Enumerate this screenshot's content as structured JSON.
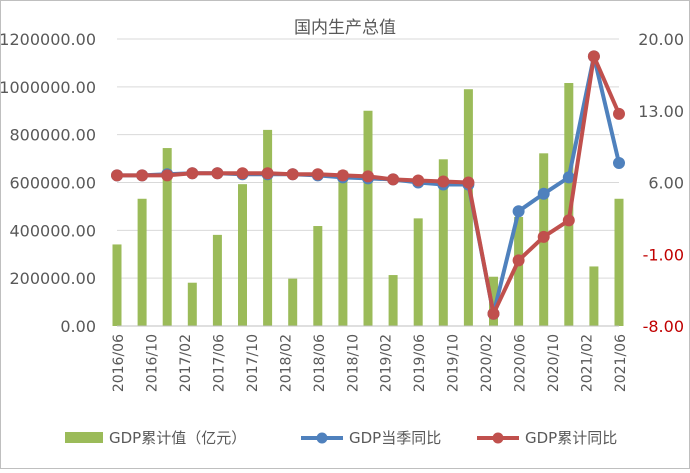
{
  "chart_data": {
    "type": "bar",
    "title": "国内生产总值",
    "categories": [
      "2016/06",
      "2016/10",
      "2017/02",
      "2017/06",
      "2017/10",
      "2018/02",
      "2018/06",
      "2018/10",
      "2019/02",
      "2019/06",
      "2019/10",
      "2020/02",
      "2020/06",
      "2020/10",
      "2021/02",
      "2021/06"
    ],
    "left_axis": {
      "min": 0,
      "max": 1200000,
      "step": 200000,
      "tick_labels": [
        "0.00",
        "200000.00",
        "400000.00",
        "600000.00",
        "800000.00",
        "1000000.00",
        "1200000.00"
      ]
    },
    "right_axis": {
      "min": -8,
      "max": 20,
      "step": 7,
      "tick_labels": [
        "-8.00",
        "-1.00",
        "6.00",
        "13.00",
        "20.00"
      ],
      "negative_color": "#c00000"
    },
    "grid": true,
    "legend_position": "bottom",
    "series": [
      {
        "name": "GDP累计值（亿元）",
        "type": "bar",
        "axis": "left",
        "color": "#9bbb59",
        "x": [
          "2016Q2",
          "2016Q3",
          "2016Q4",
          "2017Q1",
          "2017Q2",
          "2017Q3",
          "2017Q4",
          "2018Q1",
          "2018Q2",
          "2018Q3",
          "2018Q4",
          "2019Q1",
          "2019Q2",
          "2019Q3",
          "2019Q4",
          "2020Q1",
          "2020Q2",
          "2020Q3",
          "2020Q4",
          "2021Q1",
          "2021Q2"
        ],
        "values": [
          341000,
          532000,
          744000,
          181000,
          381000,
          593000,
          820000,
          198000,
          418000,
          650000,
          900000,
          213000,
          450000,
          697000,
          990000,
          206000,
          456000,
          722000,
          1016000,
          249000,
          532000
        ]
      },
      {
        "name": "GDP当季同比",
        "type": "line",
        "axis": "right",
        "color": "#4f81bd",
        "x": [
          "2016Q2",
          "2016Q3",
          "2016Q4",
          "2017Q1",
          "2017Q2",
          "2017Q3",
          "2017Q4",
          "2018Q1",
          "2018Q2",
          "2018Q3",
          "2018Q4",
          "2019Q1",
          "2019Q2",
          "2019Q3",
          "2019Q4",
          "2020Q1",
          "2020Q2",
          "2020Q3",
          "2020Q4",
          "2021Q1",
          "2021Q2"
        ],
        "values": [
          6.7,
          6.7,
          6.8,
          6.9,
          6.9,
          6.8,
          6.8,
          6.8,
          6.7,
          6.5,
          6.4,
          6.3,
          6.0,
          5.8,
          5.8,
          -6.8,
          3.2,
          4.9,
          6.5,
          18.3,
          7.9
        ]
      },
      {
        "name": "GDP累计同比",
        "type": "line",
        "axis": "right",
        "color": "#c0504d",
        "x": [
          "2016Q2",
          "2016Q3",
          "2016Q4",
          "2017Q1",
          "2017Q2",
          "2017Q3",
          "2017Q4",
          "2018Q1",
          "2018Q2",
          "2018Q3",
          "2018Q4",
          "2019Q1",
          "2019Q2",
          "2019Q3",
          "2019Q4",
          "2020Q1",
          "2020Q2",
          "2020Q3",
          "2020Q4",
          "2021Q1",
          "2021Q2"
        ],
        "values": [
          6.7,
          6.7,
          6.7,
          6.9,
          6.9,
          6.9,
          6.9,
          6.8,
          6.8,
          6.7,
          6.6,
          6.3,
          6.2,
          6.1,
          6.0,
          -6.8,
          -1.6,
          0.7,
          2.3,
          18.3,
          12.7
        ]
      }
    ]
  }
}
